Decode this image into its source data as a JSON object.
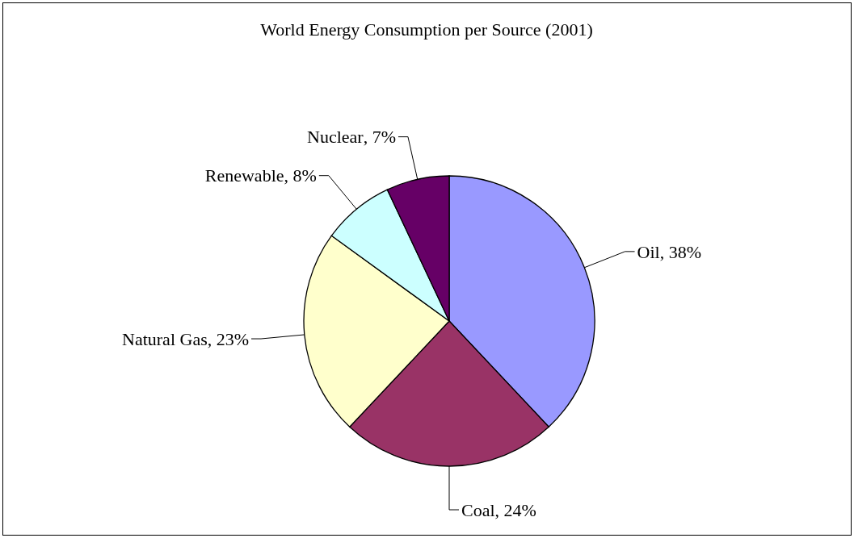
{
  "chart_data": {
    "type": "pie",
    "title": "World Energy Consumption per Source (2001)",
    "categories": [
      "Oil",
      "Coal",
      "Natural Gas",
      "Renewable",
      "Nuclear"
    ],
    "values": [
      38,
      24,
      23,
      8,
      7
    ],
    "colors": [
      "#9999ff",
      "#993366",
      "#ffffcc",
      "#ccffff",
      "#660066"
    ],
    "value_labels": [
      ", 38%",
      ", 24%",
      ", 23%",
      ", 8%",
      ", 7%"
    ],
    "legend": false
  }
}
